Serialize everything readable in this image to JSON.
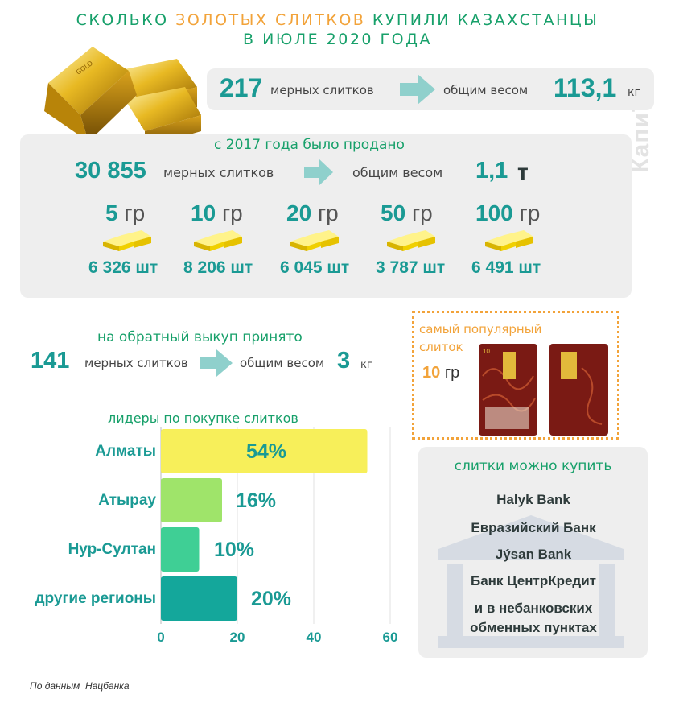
{
  "title": {
    "line1_a": "СКОЛЬКО ",
    "line1_gold": "ЗОЛОТЫХ СЛИТКОВ",
    "line1_b": " КУПИЛИ КАЗАХСТАНЦЫ",
    "line2": "В ИЮЛЕ 2020 ГОДА"
  },
  "watermark": "КапиТал",
  "july": {
    "count": "217",
    "count_label": "мерных слитков",
    "weight_label": "общим весом",
    "weight": "113,1",
    "unit": "кг"
  },
  "since2017": {
    "header": "с 2017 года было продано",
    "count": "30 855",
    "count_label": "мерных слитков",
    "weight_label": "общим весом",
    "weight": "1,1",
    "unit": "т",
    "items": [
      {
        "size": "5",
        "unit": "гр",
        "qty": "6 326 шт"
      },
      {
        "size": "10",
        "unit": "гр",
        "qty": "8 206 шт"
      },
      {
        "size": "20",
        "unit": "гр",
        "qty": "6 045 шт"
      },
      {
        "size": "50",
        "unit": "гр",
        "qty": "3 787 шт"
      },
      {
        "size": "100",
        "unit": "гр",
        "qty": "6 491 шт"
      }
    ]
  },
  "buyback": {
    "header": "на обратный выкуп принято",
    "count": "141",
    "count_label": "мерных слитков",
    "weight_label": "общим весом",
    "weight": "3",
    "unit": "кг"
  },
  "popular": {
    "label": "самый популярный слиток",
    "value": "10",
    "unit": "гр",
    "bar_mark": "10"
  },
  "chart_data": {
    "type": "bar",
    "orientation": "horizontal",
    "title": "лидеры по покупке слитков",
    "categories": [
      "Алматы",
      "Атырау",
      "Нур-Султан",
      "другие регионы"
    ],
    "values": [
      54,
      16,
      10,
      20
    ],
    "labels": [
      "54%",
      "16%",
      "10%",
      "20%"
    ],
    "colors": [
      "#f7ef5a",
      "#9fe46a",
      "#3fcf95",
      "#14a79b"
    ],
    "xlim": [
      0,
      60
    ],
    "xticks": [
      "0",
      "20",
      "40",
      "60"
    ]
  },
  "banks": {
    "header": "слитки можно купить",
    "items": [
      "Halyk Bank",
      "Евразийский Банк",
      "Jýsan Bank",
      "Банк ЦентрКредит",
      "и в небанковских обменных пунктах"
    ]
  },
  "source": "По данным  Нацбанка",
  "colors": {
    "teal": "#1a9a94",
    "green": "#17a06a",
    "orange": "#f2a33a",
    "panel": "#eeeeee"
  }
}
